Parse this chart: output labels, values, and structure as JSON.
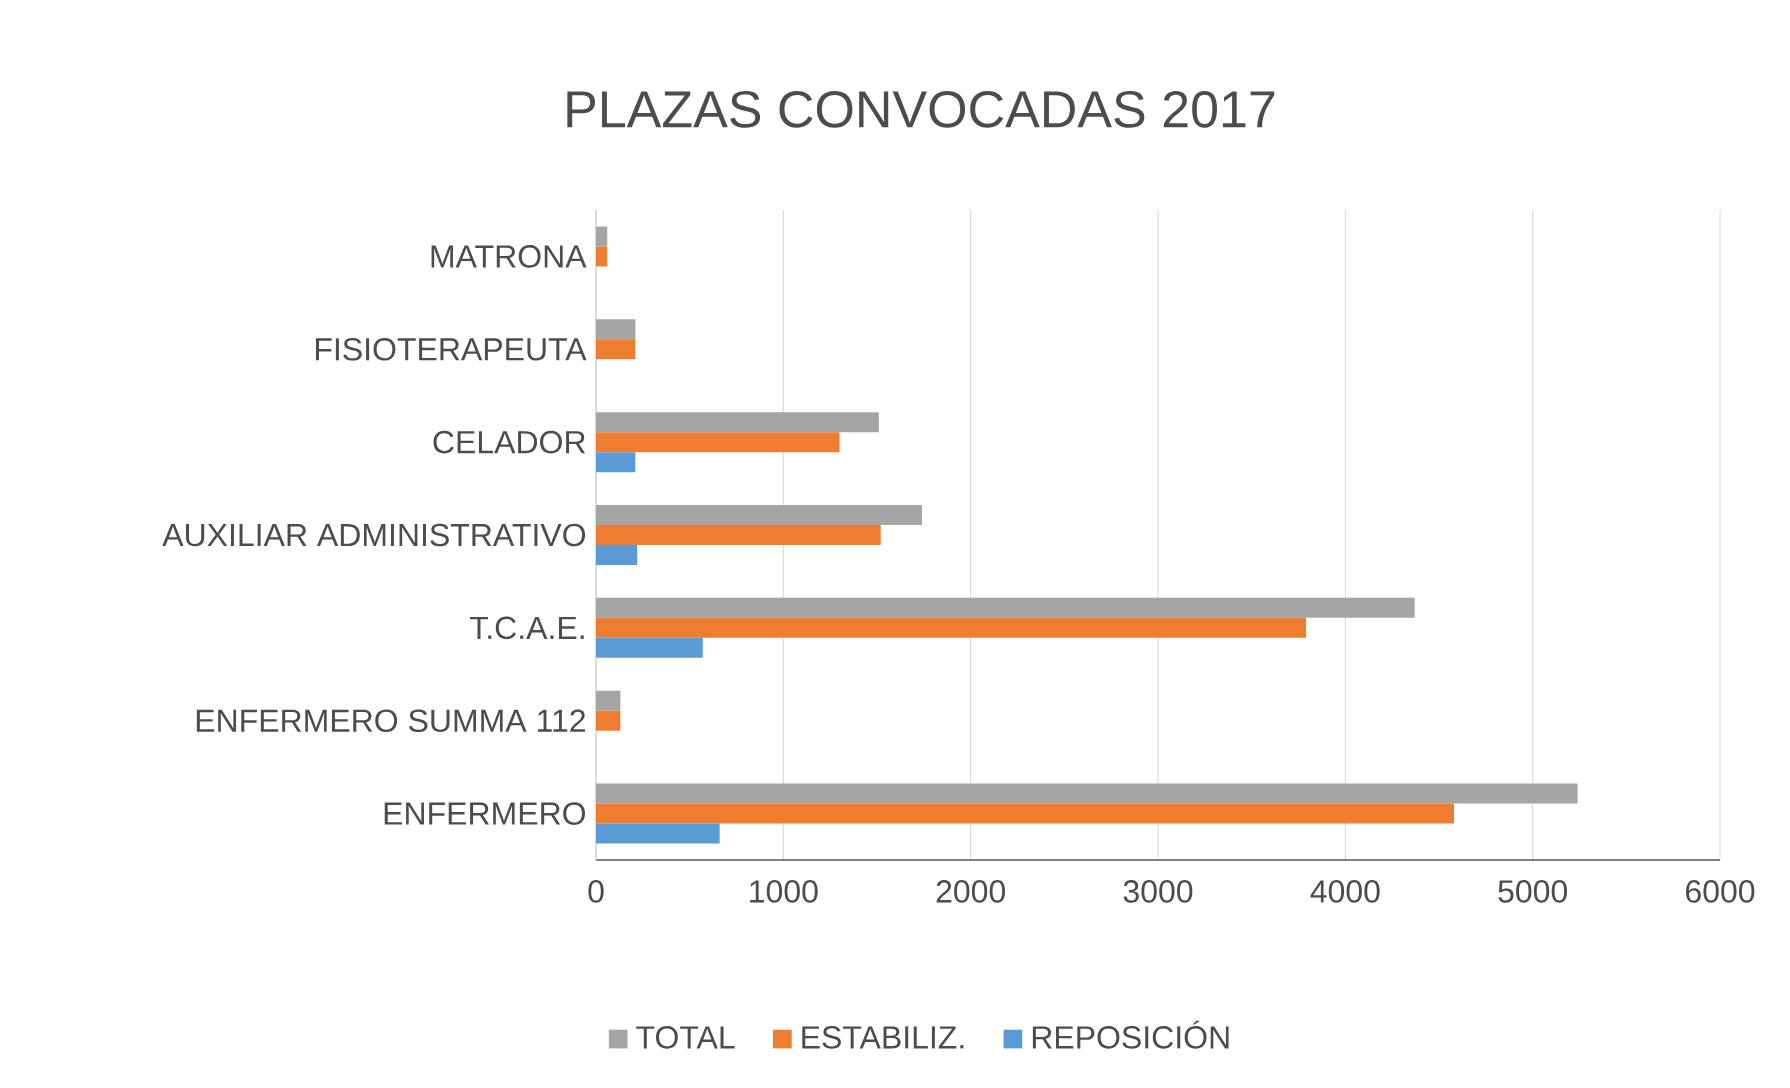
{
  "chart_data": {
    "type": "bar",
    "orientation": "horizontal",
    "title": "PLAZAS CONVOCADAS 2017",
    "categories": [
      "MATRONA",
      "FISIOTERAPEUTA",
      "CELADOR",
      "AUXILIAR ADMINISTRATIVO",
      "T.C.A.E.",
      "ENFERMERO SUMMA 112",
      "ENFERMERO"
    ],
    "series": [
      {
        "name": "TOTAL",
        "color": "#a5a5a5",
        "values": [
          60,
          210,
          1510,
          1740,
          4370,
          130,
          5240
        ]
      },
      {
        "name": "ESTABILIZ.",
        "color": "#ed7d31",
        "values": [
          60,
          210,
          1300,
          1520,
          3790,
          130,
          4580
        ]
      },
      {
        "name": "REPOSICIÓN",
        "color": "#5b9bd5",
        "values": [
          null,
          null,
          210,
          220,
          570,
          null,
          660
        ]
      }
    ],
    "xlim": [
      0,
      6000
    ],
    "xticks": [
      0,
      1000,
      2000,
      3000,
      4000,
      5000,
      6000
    ],
    "grid": "x",
    "legend": "bottom"
  }
}
